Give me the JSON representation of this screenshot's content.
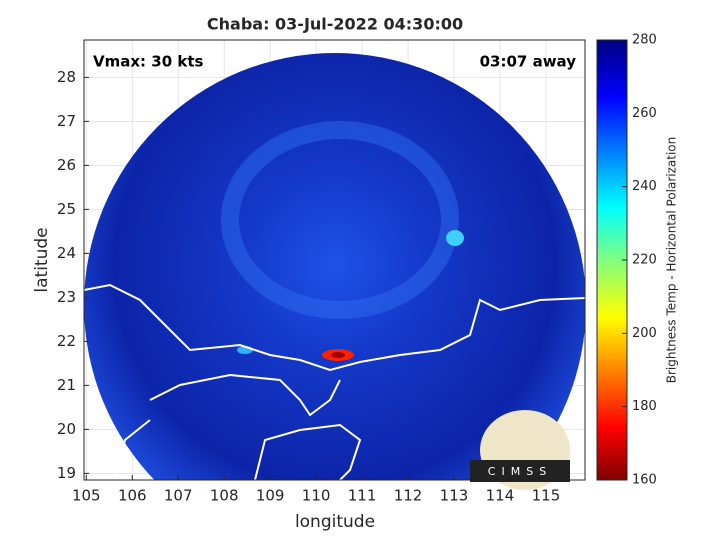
{
  "chart_data": {
    "type": "image",
    "title": "Chaba: 03-Jul-2022 04:30:00",
    "annotations": [
      "Vmax: 30 kts",
      "03:07 away"
    ],
    "x_label": "longitude",
    "y_label": "latitude",
    "xlim": [
      104.95,
      115.85
    ],
    "xticks": [
      105,
      106,
      107,
      108,
      109,
      110,
      111,
      112,
      113,
      114,
      115
    ],
    "ylim": [
      18.85,
      28.85
    ],
    "yticks": [
      19,
      20,
      21,
      22,
      23,
      24,
      25,
      26,
      27,
      28
    ],
    "grid": true,
    "colorbar": {
      "label": "Brightness Temp - Horizontal Polarization",
      "lim": [
        160,
        280
      ],
      "ticks": [
        160,
        180,
        200,
        220,
        240,
        260,
        280
      ]
    },
    "logo": "CIMSS"
  }
}
